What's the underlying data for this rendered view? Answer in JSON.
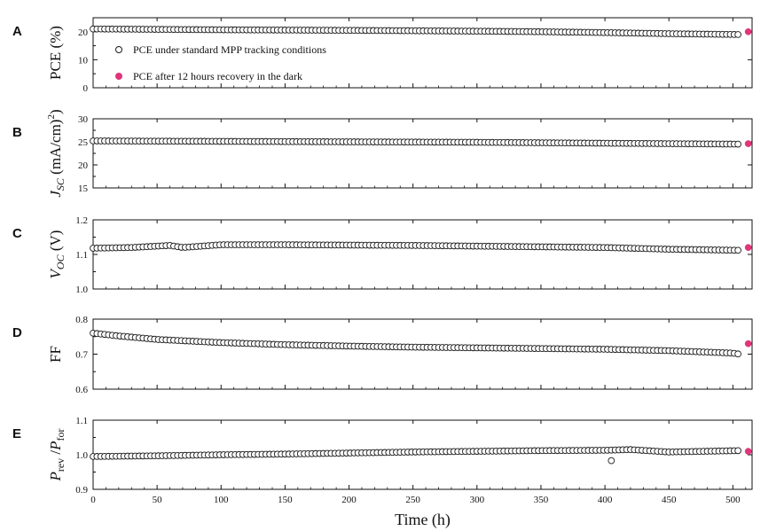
{
  "chart_data": [
    {
      "type": "scatter",
      "panel": "A",
      "ylabel": "PCE (%)",
      "xlim": [
        0,
        515
      ],
      "ylim": [
        0,
        25
      ],
      "yticks": [
        0,
        10,
        20
      ],
      "series": [
        {
          "name": "PCE under standard MPP tracking conditions",
          "marker": "open-circle",
          "x": [
            0,
            100,
            200,
            300,
            350,
            400,
            450,
            505
          ],
          "y": [
            21.0,
            20.7,
            20.5,
            20.2,
            20.0,
            19.7,
            19.3,
            19.0
          ]
        },
        {
          "name": "PCE after 12 hours recovery in the dark",
          "marker": "filled-circle",
          "x": [
            512
          ],
          "y": [
            20.0
          ]
        }
      ]
    },
    {
      "type": "scatter",
      "panel": "B",
      "ylabel": "J_SC (mA/cm²)",
      "xlim": [
        0,
        515
      ],
      "ylim": [
        15,
        30
      ],
      "yticks": [
        15,
        20,
        25,
        30
      ],
      "series": [
        {
          "name": "PCE under standard MPP tracking conditions",
          "marker": "open-circle",
          "x": [
            0,
            100,
            200,
            300,
            350,
            400,
            450,
            505
          ],
          "y": [
            25.2,
            25.1,
            25.0,
            24.9,
            24.8,
            24.7,
            24.6,
            24.5
          ]
        },
        {
          "name": "PCE after 12 hours recovery in the dark",
          "marker": "filled-circle",
          "x": [
            512
          ],
          "y": [
            24.6
          ]
        }
      ]
    },
    {
      "type": "scatter",
      "panel": "C",
      "ylabel": "V_OC (V)",
      "xlim": [
        0,
        515
      ],
      "ylim": [
        1.0,
        1.2
      ],
      "yticks": [
        1.0,
        1.1,
        1.2
      ],
      "series": [
        {
          "name": "PCE under standard MPP tracking conditions",
          "marker": "open-circle",
          "x": [
            0,
            30,
            60,
            70,
            100,
            150,
            250,
            350,
            400,
            450,
            505
          ],
          "y": [
            1.118,
            1.12,
            1.126,
            1.12,
            1.128,
            1.128,
            1.126,
            1.122,
            1.12,
            1.115,
            1.112
          ]
        },
        {
          "name": "PCE after 12 hours recovery in the dark",
          "marker": "filled-circle",
          "x": [
            512
          ],
          "y": [
            1.12
          ]
        }
      ]
    },
    {
      "type": "scatter",
      "panel": "D",
      "ylabel": "FF",
      "xlim": [
        0,
        515
      ],
      "ylim": [
        0.6,
        0.8
      ],
      "yticks": [
        0.6,
        0.7,
        0.8
      ],
      "series": [
        {
          "name": "PCE under standard MPP tracking conditions",
          "marker": "open-circle",
          "x": [
            0,
            20,
            50,
            100,
            150,
            200,
            250,
            300,
            350,
            400,
            450,
            500,
            505
          ],
          "y": [
            0.76,
            0.752,
            0.742,
            0.733,
            0.727,
            0.723,
            0.72,
            0.718,
            0.716,
            0.714,
            0.71,
            0.703,
            0.7
          ]
        },
        {
          "name": "PCE after 12 hours recovery in the dark",
          "marker": "filled-circle",
          "x": [
            512
          ],
          "y": [
            0.73
          ]
        }
      ]
    },
    {
      "type": "scatter",
      "panel": "E",
      "ylabel": "P_rev / P_for",
      "xlabel": "Time (h)",
      "xlim": [
        0,
        515
      ],
      "xticks": [
        0,
        50,
        100,
        150,
        200,
        250,
        300,
        350,
        400,
        450,
        500
      ],
      "ylim": [
        0.9,
        1.1
      ],
      "yticks": [
        0.9,
        1.0,
        1.1
      ],
      "series": [
        {
          "name": "PCE under standard MPP tracking conditions",
          "marker": "open-circle",
          "x": [
            0,
            50,
            100,
            150,
            200,
            250,
            300,
            350,
            400,
            420,
            450,
            505
          ],
          "y": [
            0.995,
            0.997,
            1.0,
            1.002,
            1.005,
            1.008,
            1.01,
            1.012,
            1.013,
            1.015,
            1.008,
            1.012
          ],
          "outliers": {
            "x": [
              405
            ],
            "y": [
              0.983
            ]
          }
        },
        {
          "name": "PCE after 12 hours recovery in the dark",
          "marker": "filled-circle",
          "x": [
            512
          ],
          "y": [
            1.01
          ]
        }
      ]
    }
  ],
  "legend": {
    "open_label": "PCE under standard MPP tracking conditions",
    "filled_label": "PCE after 12 hours recovery in the dark",
    "placement": "inside panel A, left"
  },
  "colors": {
    "open_marker_stroke": "#1a1a1a",
    "filled_marker": "#e0357a"
  }
}
